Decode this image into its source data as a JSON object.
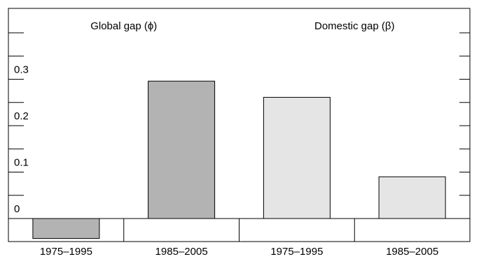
{
  "chart_data": {
    "type": "bar",
    "title": "",
    "xlabel": "",
    "ylabel": "",
    "ylim": [
      -0.045,
      0.45
    ],
    "yticks": [
      0,
      0.1,
      0.2,
      0.3
    ],
    "ytick_labels": [
      "0",
      "0.1",
      "0.2",
      "0.3"
    ],
    "grid": false,
    "categories": [
      "1975–1995",
      "1985–2005",
      "1975–1995",
      "1985–2005"
    ],
    "groups": [
      {
        "label": "Global gap (ϕ)",
        "categories": [
          "1975–1995",
          "1985–2005"
        ],
        "values": [
          -0.043,
          0.296
        ],
        "color": "#b3b3b3"
      },
      {
        "label": "Domestic gap (β)",
        "categories": [
          "1975–1995",
          "1985–2005"
        ],
        "values": [
          0.261,
          0.09
        ],
        "color": "#e5e5e5"
      }
    ]
  }
}
